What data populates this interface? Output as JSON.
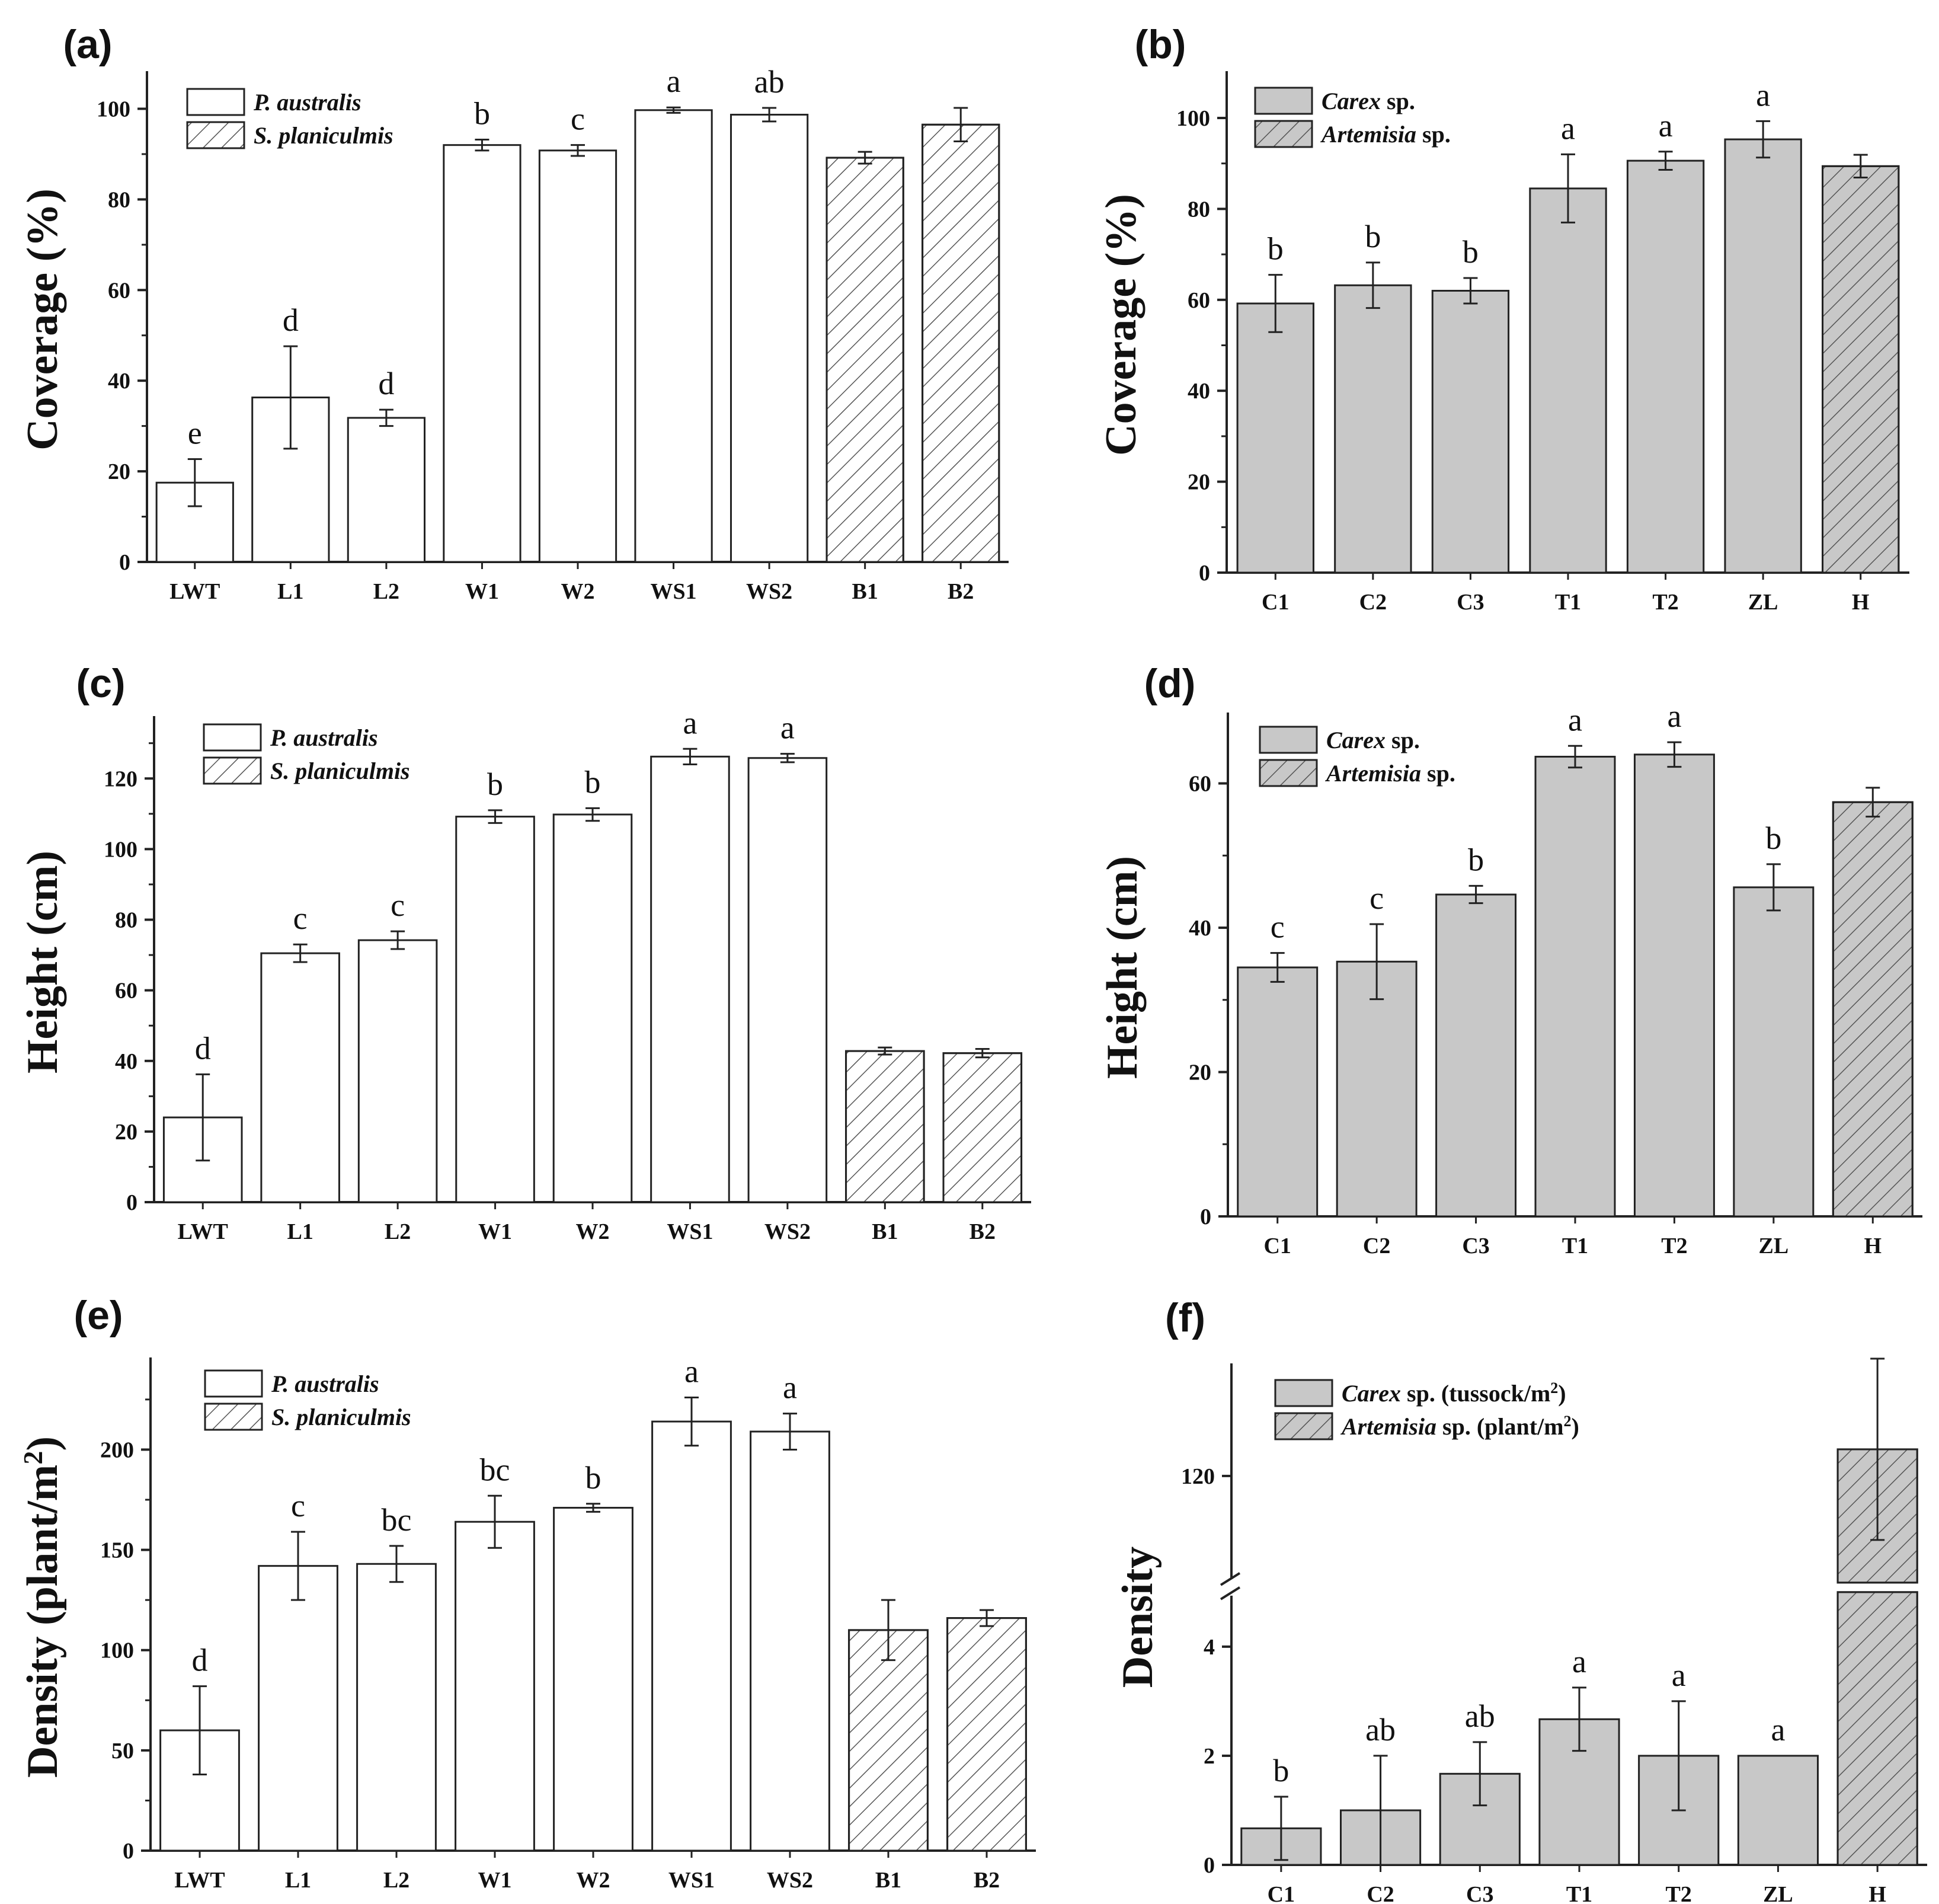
{
  "colors": {
    "open_fill": "#ffffff",
    "gray_fill": "#c8c8c8",
    "stroke": "#222222",
    "hatch": "#555555"
  },
  "chart_data": [
    {
      "panel": "(a)",
      "type": "bar",
      "ylabel": "Coverage (%)",
      "ylim": [
        0,
        107
      ],
      "yticks": [
        0,
        20,
        40,
        60,
        80,
        100
      ],
      "categories": [
        "LWT",
        "L1",
        "L2",
        "W1",
        "W2",
        "WS1",
        "WS2",
        "B1",
        "B2"
      ],
      "values": [
        17.5,
        36.3,
        31.8,
        92.0,
        90.8,
        99.7,
        98.7,
        89.2,
        96.5
      ],
      "errors": [
        5.2,
        11.3,
        1.8,
        1.2,
        1.2,
        0.6,
        1.5,
        1.3,
        3.7
      ],
      "letters": [
        "e",
        "d",
        "d",
        "b",
        "c",
        "a",
        "ab",
        "",
        ""
      ],
      "species": [
        0,
        0,
        0,
        0,
        0,
        0,
        0,
        1,
        1
      ],
      "legend": [
        {
          "name": "P. australis",
          "suffix": "",
          "hatched": false
        },
        {
          "name": "S. planiculmis",
          "suffix": "",
          "hatched": true
        }
      ],
      "bar_style": "open"
    },
    {
      "panel": "(b)",
      "type": "bar",
      "ylabel": "Coverage (%)",
      "ylim": [
        0,
        109
      ],
      "yticks": [
        0,
        20,
        40,
        60,
        80,
        100
      ],
      "categories": [
        "C1",
        "C2",
        "C3",
        "T1",
        "T2",
        "ZL",
        "H"
      ],
      "values": [
        59.2,
        63.2,
        62.0,
        84.5,
        90.6,
        95.3,
        89.4
      ],
      "errors": [
        6.3,
        5.0,
        2.8,
        7.5,
        2.0,
        4.0,
        2.5
      ],
      "letters": [
        "b",
        "b",
        "b",
        "a",
        "a",
        "a",
        ""
      ],
      "species": [
        0,
        0,
        0,
        0,
        0,
        0,
        1
      ],
      "legend": [
        {
          "name": "Carex",
          "suffix": " sp.",
          "hatched": false
        },
        {
          "name": "Artemisia",
          "suffix": " sp.",
          "hatched": true
        }
      ],
      "bar_style": "gray"
    },
    {
      "panel": "(c)",
      "type": "bar",
      "ylabel": "Height (cm)",
      "ylim": [
        0,
        136
      ],
      "yticks": [
        0,
        20,
        40,
        60,
        80,
        100,
        120
      ],
      "categories": [
        "LWT",
        "L1",
        "L2",
        "W1",
        "W2",
        "WS1",
        "WS2",
        "B1",
        "B2"
      ],
      "values": [
        24.0,
        70.5,
        74.2,
        109.2,
        109.8,
        126.2,
        125.8,
        42.8,
        42.2
      ],
      "errors": [
        12.2,
        2.5,
        2.5,
        1.8,
        1.8,
        2.2,
        1.2,
        1.0,
        1.2
      ],
      "letters": [
        "d",
        "c",
        "c",
        "b",
        "b",
        "a",
        "a",
        "",
        ""
      ],
      "species": [
        0,
        0,
        0,
        0,
        0,
        0,
        0,
        1,
        1
      ],
      "legend": [
        {
          "name": "P. australis",
          "suffix": "",
          "hatched": false
        },
        {
          "name": "S. planiculmis",
          "suffix": "",
          "hatched": true
        }
      ],
      "bar_style": "open"
    },
    {
      "panel": "(d)",
      "type": "bar",
      "ylabel": "Height (cm)",
      "ylim": [
        0,
        69
      ],
      "yticks": [
        0,
        20,
        40,
        60
      ],
      "categories": [
        "C1",
        "C2",
        "C3",
        "T1",
        "T2",
        "ZL",
        "H"
      ],
      "values": [
        34.5,
        35.3,
        44.6,
        63.7,
        64.0,
        45.6,
        57.4
      ],
      "errors": [
        2.0,
        5.2,
        1.2,
        1.5,
        1.7,
        3.2,
        2.0
      ],
      "letters": [
        "c",
        "c",
        "b",
        "a",
        "a",
        "b",
        ""
      ],
      "species": [
        0,
        0,
        0,
        0,
        0,
        0,
        1
      ],
      "legend": [
        {
          "name": "Carex",
          "suffix": " sp.",
          "hatched": false
        },
        {
          "name": "Artemisia",
          "suffix": " sp.",
          "hatched": true
        }
      ],
      "bar_style": "gray"
    },
    {
      "panel": "(e)",
      "type": "bar",
      "ylabel": "Density (plant/m",
      "ylabel_sup": "2",
      "ylabel_end": ")",
      "ylim": [
        0,
        243
      ],
      "yticks": [
        0,
        50,
        100,
        150,
        200
      ],
      "categories": [
        "LWT",
        "L1",
        "L2",
        "W1",
        "W2",
        "WS1",
        "WS2",
        "B1",
        "B2"
      ],
      "values": [
        60,
        142,
        143,
        164,
        171,
        214,
        209,
        110,
        116
      ],
      "errors": [
        22,
        17,
        9,
        13,
        2,
        12,
        9,
        15,
        4
      ],
      "letters": [
        "d",
        "c",
        "bc",
        "bc",
        "b",
        "a",
        "a",
        "",
        ""
      ],
      "species": [
        0,
        0,
        0,
        0,
        0,
        0,
        0,
        1,
        1
      ],
      "legend": [
        {
          "name": "P. australis",
          "suffix": "",
          "hatched": false
        },
        {
          "name": "S. planiculmis",
          "suffix": "",
          "hatched": true
        }
      ],
      "bar_style": "open"
    },
    {
      "panel": "(f)",
      "type": "bar",
      "ylabel": "Density",
      "axis_break": {
        "lower": [
          0,
          5
        ],
        "upper": [
          100,
          140
        ]
      },
      "yticks": [
        0,
        2,
        4,
        120
      ],
      "categories": [
        "C1",
        "C2",
        "C3",
        "T1",
        "T2",
        "ZL",
        "H"
      ],
      "values": [
        0.67,
        1.0,
        1.67,
        2.67,
        2.0,
        2.0,
        125
      ],
      "errors": [
        0.58,
        1.0,
        0.58,
        0.58,
        1.0,
        0,
        17
      ],
      "letters": [
        "b",
        "ab",
        "ab",
        "a",
        "a",
        "a",
        ""
      ],
      "species": [
        0,
        0,
        0,
        0,
        0,
        0,
        1
      ],
      "legend": [
        {
          "name": "Carex",
          "suffix": " sp. (tussock/m",
          "sup": "2",
          "end": ")",
          "hatched": false
        },
        {
          "name": "Artemisia",
          "suffix": " sp. (plant/m",
          "sup": "2",
          "end": ")",
          "hatched": true
        }
      ],
      "bar_style": "gray"
    }
  ]
}
